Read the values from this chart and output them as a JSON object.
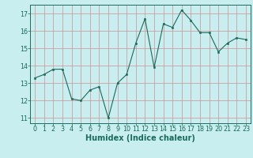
{
  "x": [
    0,
    1,
    2,
    3,
    4,
    5,
    6,
    7,
    8,
    9,
    10,
    11,
    12,
    13,
    14,
    15,
    16,
    17,
    18,
    19,
    20,
    21,
    22,
    23
  ],
  "y": [
    13.3,
    13.5,
    13.8,
    13.8,
    12.1,
    12.0,
    12.6,
    12.8,
    11.0,
    13.0,
    13.5,
    15.3,
    16.7,
    13.9,
    16.4,
    16.2,
    17.2,
    16.6,
    15.9,
    15.9,
    14.8,
    15.3,
    15.6,
    15.5
  ],
  "xlabel": "Humidex (Indice chaleur)",
  "ylim": [
    10.7,
    17.5
  ],
  "xlim": [
    -0.5,
    23.5
  ],
  "yticks": [
    11,
    12,
    13,
    14,
    15,
    16,
    17
  ],
  "xticks": [
    0,
    1,
    2,
    3,
    4,
    5,
    6,
    7,
    8,
    9,
    10,
    11,
    12,
    13,
    14,
    15,
    16,
    17,
    18,
    19,
    20,
    21,
    22,
    23
  ],
  "line_color": "#1a6b5a",
  "marker_color": "#1a6b5a",
  "bg_color": "#c8eef0",
  "grid_color": "#d09090",
  "tick_label_fontsize": 5.8,
  "xlabel_fontsize": 7.0
}
